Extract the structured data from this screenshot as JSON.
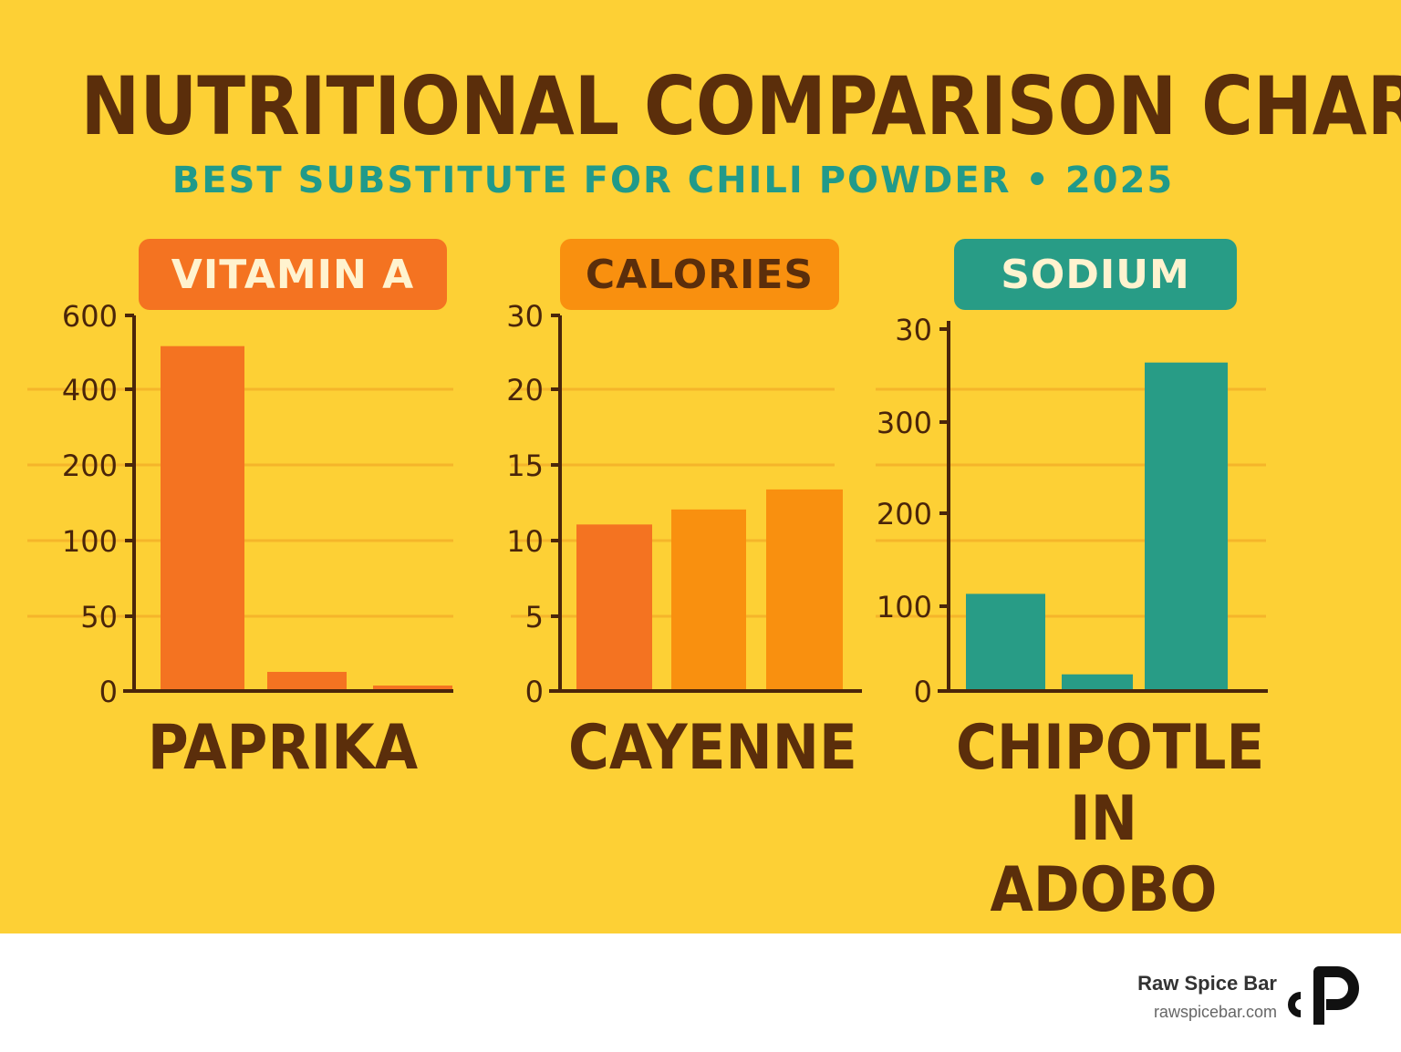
{
  "title": "NUTRITIONAL COMPARISON CHART",
  "subtitle": "BEST SUBSTITUTE FOR CHILI POWDER • 2025",
  "chart_data": [
    {
      "type": "bar",
      "title": "VITAMIN A",
      "category_label": "PAPRIKA",
      "tick_labels": [
        "0",
        "50",
        "100",
        "200",
        "400",
        "600"
      ],
      "values": [
        505,
        28,
        8
      ],
      "color": "#f47321",
      "badge_color": "#f47321",
      "badge_text_color": "#fff3cf"
    },
    {
      "type": "bar",
      "title": "CALORIES",
      "category_label": "CAYENNE",
      "tick_labels": [
        "0",
        "5",
        "10",
        "15",
        "20",
        "30"
      ],
      "values": [
        13.3,
        14.5,
        16.1
      ],
      "colors": [
        "#f47321",
        "#f9900f",
        "#f9900f"
      ],
      "badge_color": "#f9900f",
      "badge_text_color": "#5b2e0b"
    },
    {
      "type": "bar",
      "title": "SODIUM",
      "category_label": "CHIPOTLE\nIN ADOBO",
      "tick_labels": [
        "0",
        "100",
        "200",
        "300",
        "30"
      ],
      "values": [
        105,
        18,
        355
      ],
      "color": "#289c86",
      "badge_color": "#289c86",
      "badge_text_color": "#fff3cf"
    }
  ],
  "footer": {
    "brand_name": "Raw Spice Bar",
    "brand_url": "rawspicebar.com"
  }
}
